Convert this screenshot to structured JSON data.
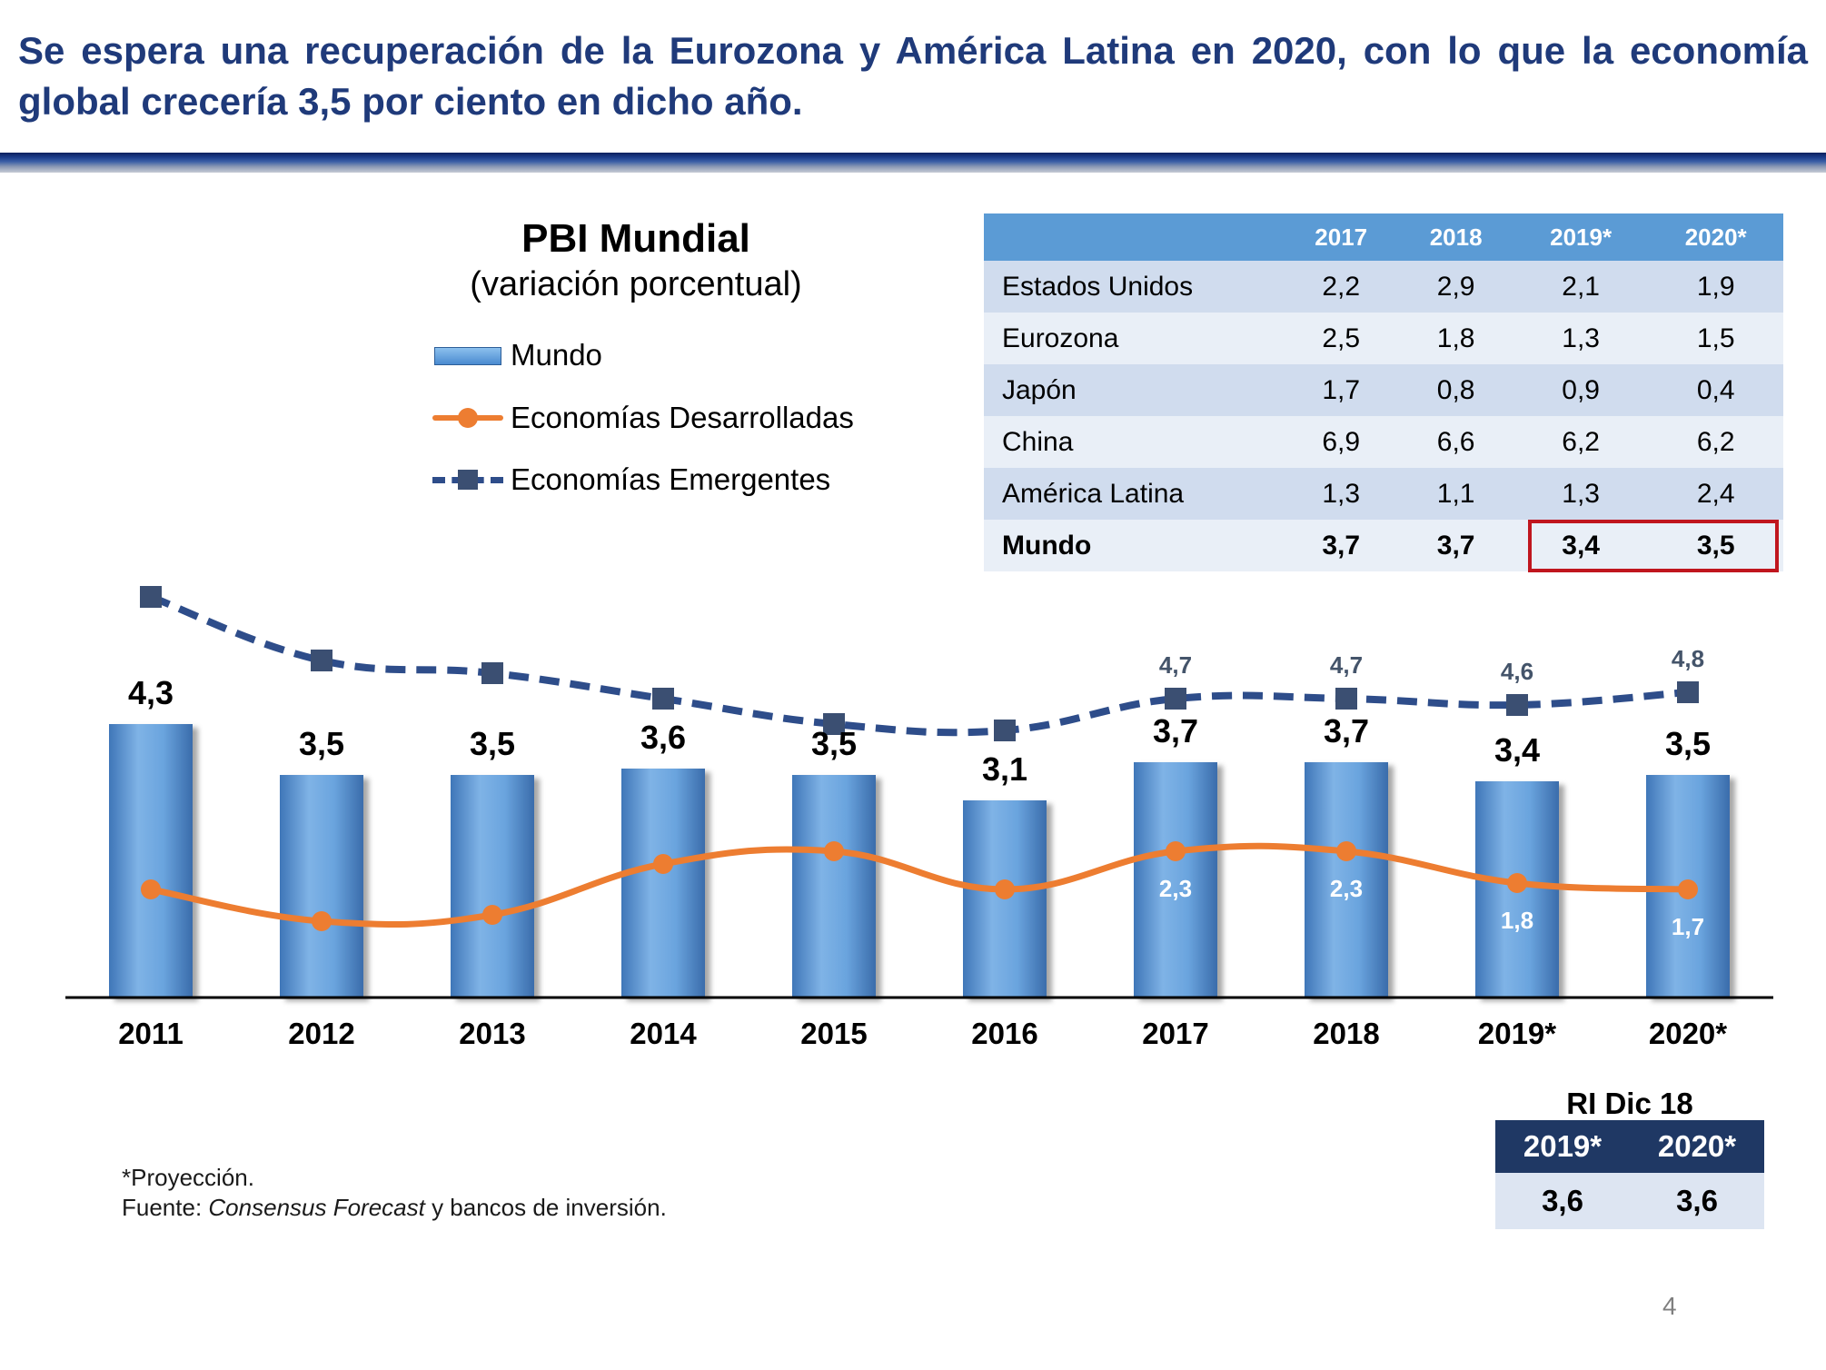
{
  "headline": "Se espera una recuperación de la Eurozona y América Latina en 2020, con lo que la economía global crecería 3,5 por ciento en dicho año.",
  "chart": {
    "title": "PBI Mundial",
    "subtitle": "(variación porcentual)"
  },
  "legend": [
    "Mundo",
    "Economías Desarrolladas",
    "Economías Emergentes"
  ],
  "chart_data": {
    "type": "bar",
    "title": "PBI Mundial",
    "subtitle": "(variación porcentual)",
    "categories": [
      "2011",
      "2012",
      "2013",
      "2014",
      "2015",
      "2016",
      "2017",
      "2018",
      "2019*",
      "2020*"
    ],
    "series": [
      {
        "name": "Mundo",
        "type": "bar",
        "values": [
          4.3,
          3.5,
          3.5,
          3.6,
          3.5,
          3.1,
          3.7,
          3.7,
          3.4,
          3.5
        ],
        "labels": [
          "4,3",
          "3,5",
          "3,5",
          "3,6",
          "3,5",
          "3,1",
          "3,7",
          "3,7",
          "3,4",
          "3,5"
        ]
      },
      {
        "name": "Economías Desarrolladas",
        "type": "line",
        "values": [
          1.7,
          1.2,
          1.3,
          2.1,
          2.3,
          1.7,
          2.3,
          2.3,
          1.8,
          1.7
        ],
        "labels": [
          "",
          "",
          "",
          "",
          "",
          "",
          "2,3",
          "2,3",
          "1,8",
          "1,7"
        ]
      },
      {
        "name": "Economías Emergentes",
        "type": "line",
        "dashed": true,
        "values": [
          6.3,
          5.3,
          5.1,
          4.7,
          4.3,
          4.2,
          4.7,
          4.7,
          4.6,
          4.8
        ],
        "labels": [
          "",
          "",
          "",
          "",
          "",
          "",
          "4,7",
          "4,7",
          "4,6",
          "4,8"
        ]
      }
    ],
    "xlabel": "",
    "ylabel": "",
    "ylim": [
      0,
      7
    ]
  },
  "table": {
    "headers": [
      "",
      "2017",
      "2018",
      "2019*",
      "2020*"
    ],
    "rows": [
      [
        "Estados Unidos",
        "2,2",
        "2,9",
        "2,1",
        "1,9"
      ],
      [
        "Eurozona",
        "2,5",
        "1,8",
        "1,3",
        "1,5"
      ],
      [
        "Japón",
        "1,7",
        "0,8",
        "0,9",
        "0,4"
      ],
      [
        "China",
        "6,9",
        "6,6",
        "6,2",
        "6,2"
      ],
      [
        "América Latina",
        "1,3",
        "1,1",
        "1,3",
        "2,4"
      ],
      [
        "Mundo",
        "3,7",
        "3,7",
        "3,4",
        "3,5"
      ]
    ]
  },
  "ri": {
    "title": "RI Dic 18",
    "headers": [
      "2019*",
      "2020*"
    ],
    "values": [
      "3,6",
      "3,6"
    ]
  },
  "footnote": {
    "line1": "*Proyección.",
    "line2_prefix": "Fuente: ",
    "line2_italic": "Consensus Forecast",
    "line2_suffix": " y bancos de inversión."
  },
  "page_number": "4",
  "colors": {
    "title_blue": "#1f3a7a",
    "bar_blue": "#5b9bd5",
    "developed_orange": "#ed7d31",
    "emerging_navy": "#2e4d8a",
    "highlight_red": "#c0161e"
  }
}
